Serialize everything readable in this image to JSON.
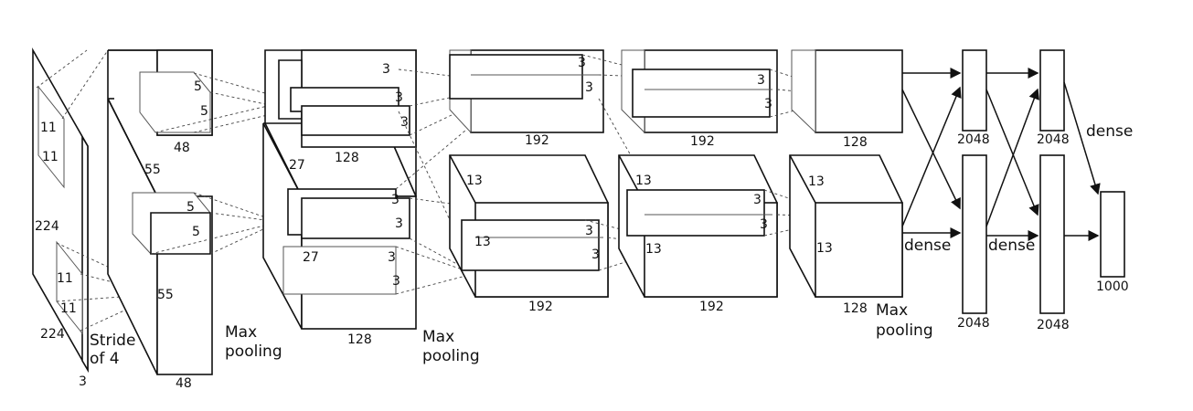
{
  "layer1": {
    "input_size_h": "224",
    "input_size_v": "224",
    "channels": "3",
    "kernel_top_a": "11",
    "kernel_top_b": "11",
    "kernel_bot_a": "11",
    "kernel_bot_b": "11",
    "stride_line1": "Stride",
    "stride_line2": "of 4"
  },
  "layer2": {
    "map_size": "55",
    "map_size_bottom": "55",
    "depth": "48",
    "depth_bottom": "48",
    "kernel_a": "5",
    "kernel_b": "5",
    "kernel_c": "5",
    "kernel_d": "5",
    "pool_line1": "Max",
    "pool_line2": "pooling"
  },
  "layer3": {
    "map_size": "27",
    "map_size_inner": "27",
    "depth_top": "128",
    "depth_bottom": "128",
    "k1": "3",
    "k2": "3",
    "k3": "3",
    "k4": "3",
    "k5": "3",
    "k6": "3",
    "k7": "3",
    "pool_line1": "Max",
    "pool_line2": "pooling"
  },
  "layer4": {
    "map_top": "13",
    "map_inner": "13",
    "depth_top": "192",
    "depth_bottom": "192",
    "k1": "3",
    "k2": "3",
    "k3": "3",
    "k4": "3"
  },
  "layer5": {
    "map_top": "13",
    "map_inner": "13",
    "depth_top": "192",
    "depth_bottom": "192",
    "k1": "3",
    "k2": "3",
    "k3": "3",
    "k4": "3"
  },
  "layer6": {
    "map_top": "13",
    "map_inner": "13",
    "depth_top": "128",
    "depth_bottom": "128",
    "pool_line1": "Max",
    "pool_line2": "pooling"
  },
  "dense": {
    "label1": "dense",
    "label2": "dense",
    "label3": "dense",
    "fc1_top": "2048",
    "fc1_bot": "2048",
    "fc2_top": "2048",
    "fc2_bot": "2048",
    "output": "1000"
  }
}
